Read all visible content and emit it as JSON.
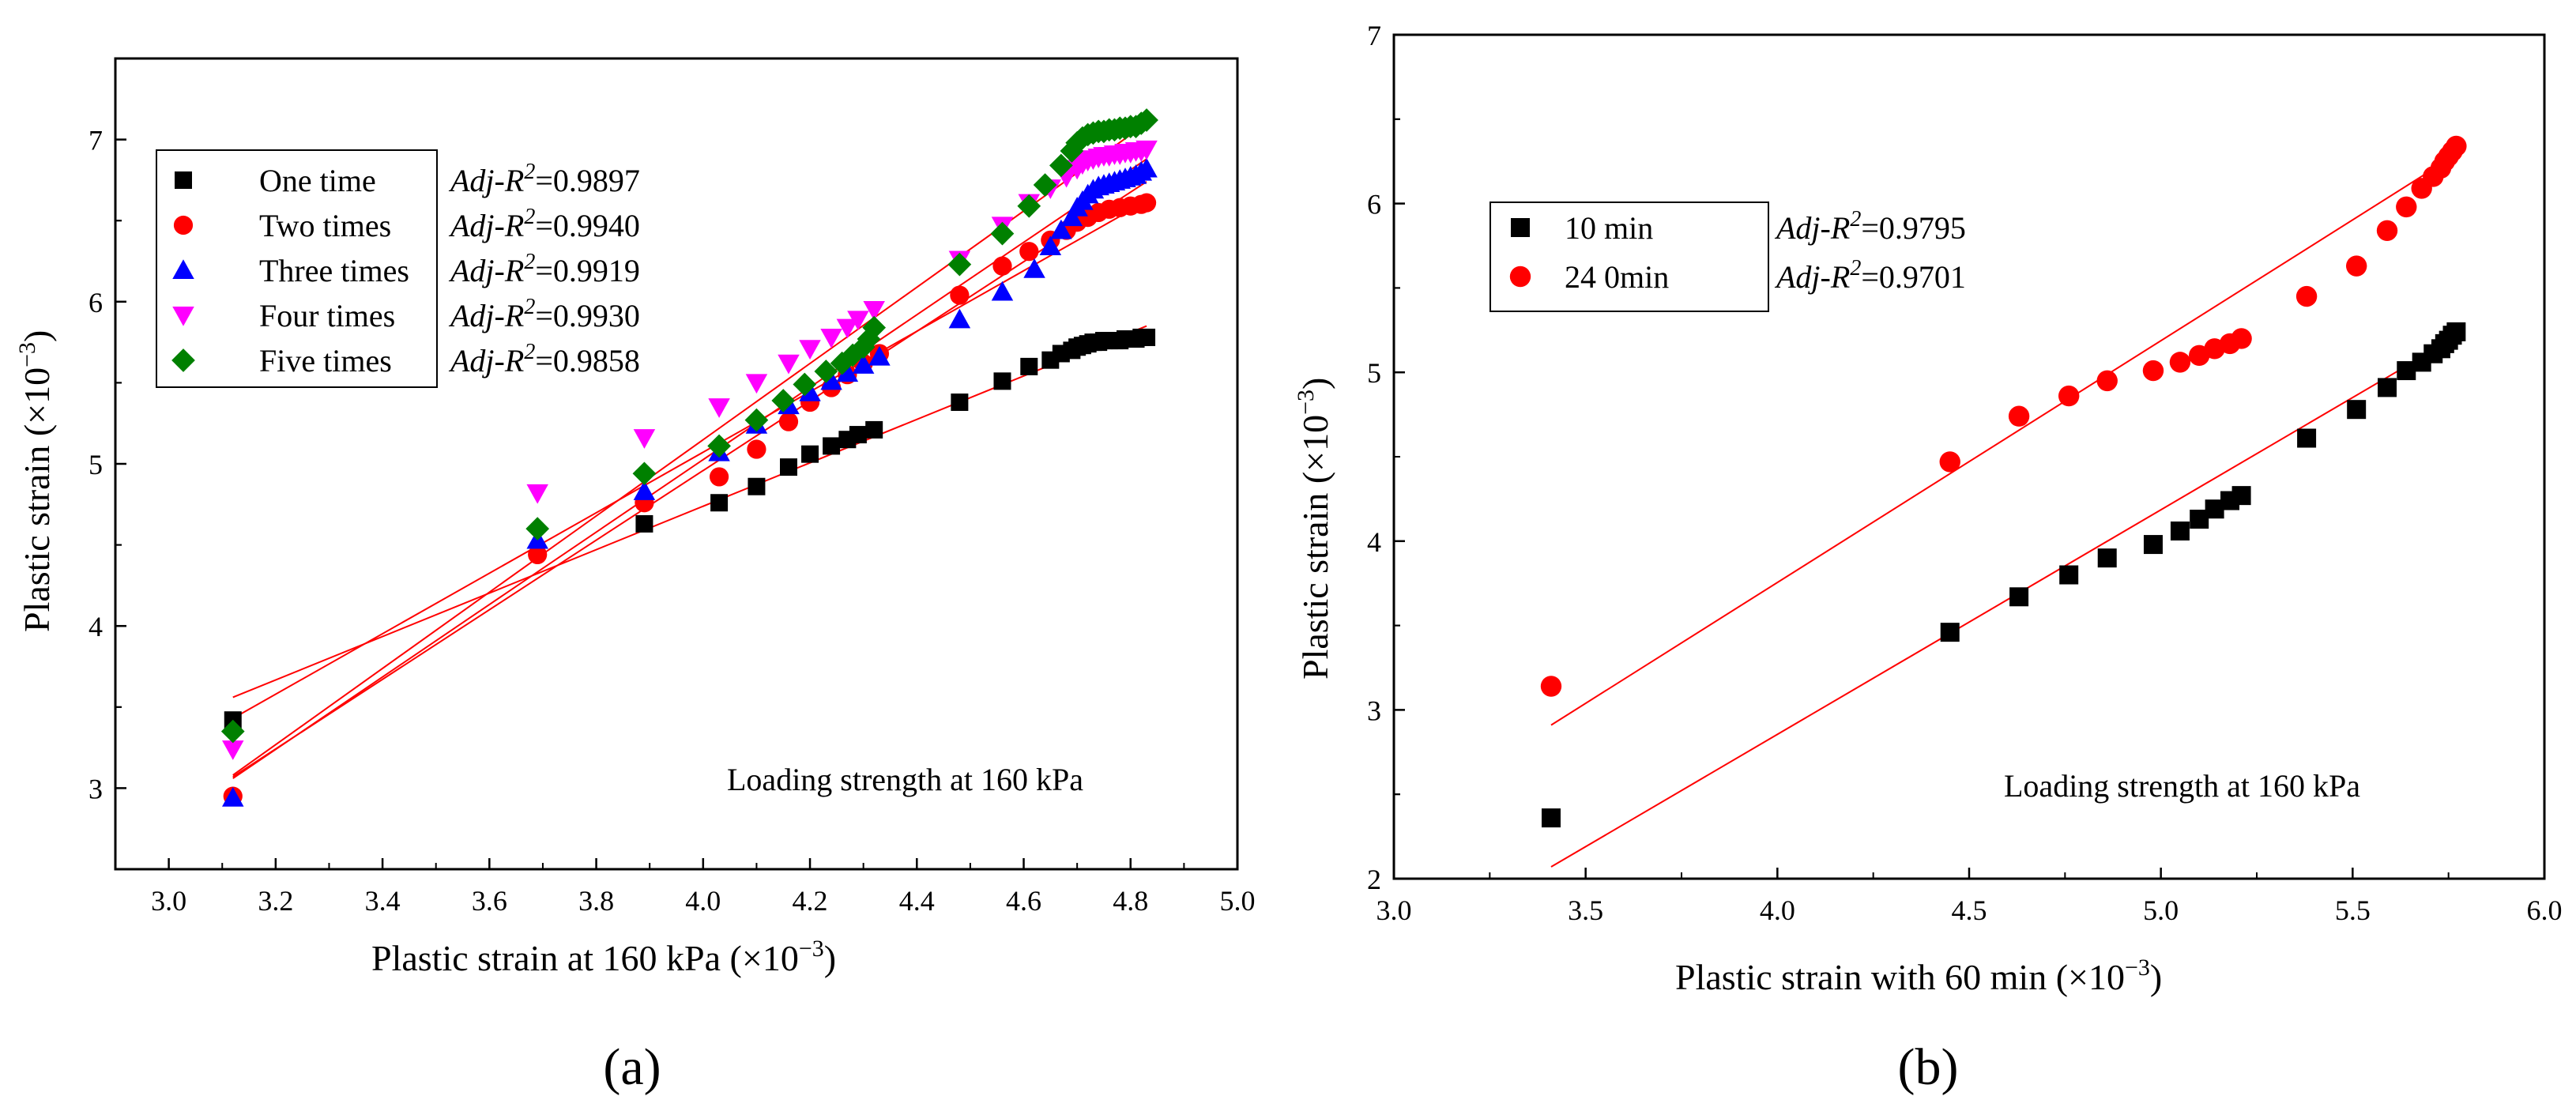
{
  "chart_data": [
    {
      "type": "scatter",
      "panel_label": "(a)",
      "xlabel": "Plastic strain at 160 kPa (×10",
      "ylabel": "Plastic strain (×10",
      "exponent": "−3",
      "exponent_suffix": ")",
      "xlim": [
        2.9,
        5.0
      ],
      "ylim": [
        2.5,
        7.5
      ],
      "xticks": [
        "3.0",
        "3.2",
        "3.4",
        "3.6",
        "3.8",
        "4.0",
        "4.2",
        "4.4",
        "4.6",
        "4.8",
        "5.0"
      ],
      "yticks": [
        "3",
        "4",
        "5",
        "6",
        "7"
      ],
      "annotation": "Loading strength at 160 kPa",
      "legend_position": "top-left",
      "r2_label_prefix": "Adj-R",
      "r2_label_suffix": "=",
      "series": [
        {
          "name": "One time",
          "marker": "square",
          "color": "#000000",
          "r2": "0.9897",
          "fit": [
            [
              3.12,
              3.56
            ],
            [
              4.83,
              5.85
            ]
          ],
          "x": [
            3.12,
            3.89,
            4.03,
            4.1,
            4.16,
            4.2,
            4.24,
            4.27,
            4.29,
            4.32,
            4.48,
            4.56,
            4.61,
            4.65,
            4.67,
            4.69,
            4.7,
            4.71,
            4.72,
            4.73,
            4.74,
            4.75,
            4.76,
            4.77,
            4.78,
            4.79,
            4.8,
            4.81,
            4.82,
            4.83
          ],
          "y": [
            3.42,
            4.63,
            4.76,
            4.86,
            4.98,
            5.06,
            5.11,
            5.15,
            5.18,
            5.21,
            5.38,
            5.51,
            5.6,
            5.64,
            5.68,
            5.7,
            5.72,
            5.73,
            5.74,
            5.75,
            5.75,
            5.76,
            5.76,
            5.76,
            5.76,
            5.77,
            5.77,
            5.77,
            5.78,
            5.78
          ]
        },
        {
          "name": "Two times",
          "marker": "circle",
          "color": "#ff0000",
          "r2": "0.9940",
          "fit": [
            [
              3.12,
              3.43
            ],
            [
              4.83,
              6.62
            ]
          ],
          "x": [
            3.12,
            3.69,
            3.89,
            4.03,
            4.1,
            4.16,
            4.2,
            4.24,
            4.27,
            4.3,
            4.33,
            4.48,
            4.56,
            4.61,
            4.65,
            4.68,
            4.7,
            4.72,
            4.74,
            4.76,
            4.78,
            4.8,
            4.82,
            4.83
          ],
          "y": [
            2.95,
            4.44,
            4.76,
            4.92,
            5.09,
            5.26,
            5.38,
            5.47,
            5.55,
            5.62,
            5.68,
            6.04,
            6.22,
            6.31,
            6.38,
            6.44,
            6.49,
            6.52,
            6.55,
            6.57,
            6.58,
            6.59,
            6.6,
            6.61
          ]
        },
        {
          "name": "Three times",
          "marker": "triangle-up",
          "color": "#0000ff",
          "r2": "0.9919",
          "fit": [
            [
              3.12,
              3.07
            ],
            [
              4.83,
              6.74
            ]
          ],
          "x": [
            3.12,
            3.69,
            3.89,
            4.03,
            4.1,
            4.16,
            4.2,
            4.24,
            4.27,
            4.3,
            4.33,
            4.48,
            4.56,
            4.62,
            4.65,
            4.67,
            4.69,
            4.7,
            4.71,
            4.72,
            4.73,
            4.74,
            4.75,
            4.76,
            4.77,
            4.78,
            4.79,
            4.8,
            4.81,
            4.82,
            4.83
          ],
          "y": [
            2.94,
            4.53,
            4.83,
            5.07,
            5.24,
            5.36,
            5.44,
            5.51,
            5.56,
            5.61,
            5.66,
            5.89,
            6.06,
            6.2,
            6.34,
            6.44,
            6.52,
            6.58,
            6.62,
            6.66,
            6.69,
            6.71,
            6.72,
            6.73,
            6.74,
            6.75,
            6.76,
            6.77,
            6.78,
            6.8,
            6.82
          ]
        },
        {
          "name": "Four times",
          "marker": "triangle-down",
          "color": "#ff00ff",
          "r2": "0.9930",
          "fit": [
            [
              3.12,
              3.06
            ],
            [
              4.83,
              6.88
            ]
          ],
          "x": [
            3.12,
            3.69,
            3.89,
            4.03,
            4.1,
            4.16,
            4.2,
            4.24,
            4.27,
            4.29,
            4.32,
            4.48,
            4.56,
            4.61,
            4.65,
            4.68,
            4.7,
            4.71,
            4.72,
            4.73,
            4.74,
            4.75,
            4.76,
            4.77,
            4.78,
            4.79,
            4.8,
            4.81,
            4.82,
            4.83
          ],
          "y": [
            3.24,
            4.82,
            5.16,
            5.35,
            5.5,
            5.62,
            5.71,
            5.78,
            5.84,
            5.89,
            5.95,
            6.26,
            6.47,
            6.61,
            6.7,
            6.77,
            6.82,
            6.85,
            6.87,
            6.88,
            6.89,
            6.9,
            6.9,
            6.91,
            6.91,
            6.92,
            6.92,
            6.93,
            6.93,
            6.94
          ]
        },
        {
          "name": "Five times",
          "marker": "diamond",
          "color": "#008000",
          "r2": "0.9858",
          "fit": [
            [
              3.12,
              3.08
            ],
            [
              4.83,
              7.1
            ]
          ],
          "x": [
            3.12,
            3.69,
            3.89,
            4.03,
            4.1,
            4.15,
            4.19,
            4.23,
            4.26,
            4.28,
            4.3,
            4.31,
            4.32,
            4.48,
            4.56,
            4.61,
            4.64,
            4.67,
            4.69,
            4.7,
            4.71,
            4.72,
            4.73,
            4.74,
            4.75,
            4.76,
            4.77,
            4.78,
            4.79,
            4.8,
            4.81,
            4.82,
            4.83
          ],
          "y": [
            3.35,
            4.6,
            4.94,
            5.11,
            5.27,
            5.39,
            5.49,
            5.57,
            5.62,
            5.67,
            5.72,
            5.77,
            5.84,
            6.23,
            6.42,
            6.59,
            6.72,
            6.84,
            6.93,
            6.98,
            7.01,
            7.03,
            7.04,
            7.05,
            7.05,
            7.06,
            7.06,
            7.07,
            7.07,
            7.08,
            7.08,
            7.1,
            7.12
          ]
        }
      ]
    },
    {
      "type": "scatter",
      "panel_label": "(b)",
      "xlabel": "Plastic strain with 60 min (×10",
      "ylabel": "Plastic strain (×10",
      "exponent": "−3",
      "exponent_suffix": ")",
      "xlim": [
        3.0,
        6.0
      ],
      "ylim": [
        2.0,
        7.0
      ],
      "xticks": [
        "3.0",
        "3.5",
        "4.0",
        "4.5",
        "5.0",
        "5.5",
        "6.0"
      ],
      "yticks": [
        "2",
        "3",
        "4",
        "5",
        "6",
        "7"
      ],
      "annotation": "Loading strength at 160 kPa",
      "legend_position": "top-left",
      "r2_label_prefix": "Adj-R",
      "r2_label_suffix": "=",
      "series": [
        {
          "name": "10 min",
          "marker": "square",
          "color": "#000000",
          "r2": "0.9795",
          "fit": [
            [
              3.41,
              2.07
            ],
            [
              5.77,
              5.21
            ]
          ],
          "x": [
            3.41,
            4.45,
            4.63,
            4.76,
            4.86,
            4.98,
            5.05,
            5.1,
            5.14,
            5.18,
            5.21,
            5.38,
            5.51,
            5.59,
            5.64,
            5.68,
            5.71,
            5.73,
            5.74,
            5.75,
            5.76,
            5.77
          ],
          "y": [
            2.36,
            3.46,
            3.67,
            3.8,
            3.9,
            3.98,
            4.06,
            4.13,
            4.19,
            4.24,
            4.27,
            4.61,
            4.78,
            4.91,
            5.01,
            5.06,
            5.11,
            5.14,
            5.17,
            5.19,
            5.22,
            5.24
          ]
        },
        {
          "name": "24 0min",
          "marker": "circle",
          "color": "#ff0000",
          "r2": "0.9701",
          "fit": [
            [
              3.41,
              2.91
            ],
            [
              5.77,
              6.29
            ]
          ],
          "x": [
            3.41,
            4.45,
            4.63,
            4.76,
            4.86,
            4.98,
            5.05,
            5.1,
            5.14,
            5.18,
            5.21,
            5.38,
            5.51,
            5.59,
            5.64,
            5.68,
            5.71,
            5.73,
            5.74,
            5.75,
            5.76,
            5.77
          ],
          "y": [
            3.14,
            4.47,
            4.74,
            4.86,
            4.95,
            5.01,
            5.06,
            5.1,
            5.14,
            5.17,
            5.2,
            5.45,
            5.63,
            5.84,
            5.98,
            6.09,
            6.16,
            6.21,
            6.25,
            6.28,
            6.31,
            6.34
          ]
        }
      ]
    }
  ]
}
